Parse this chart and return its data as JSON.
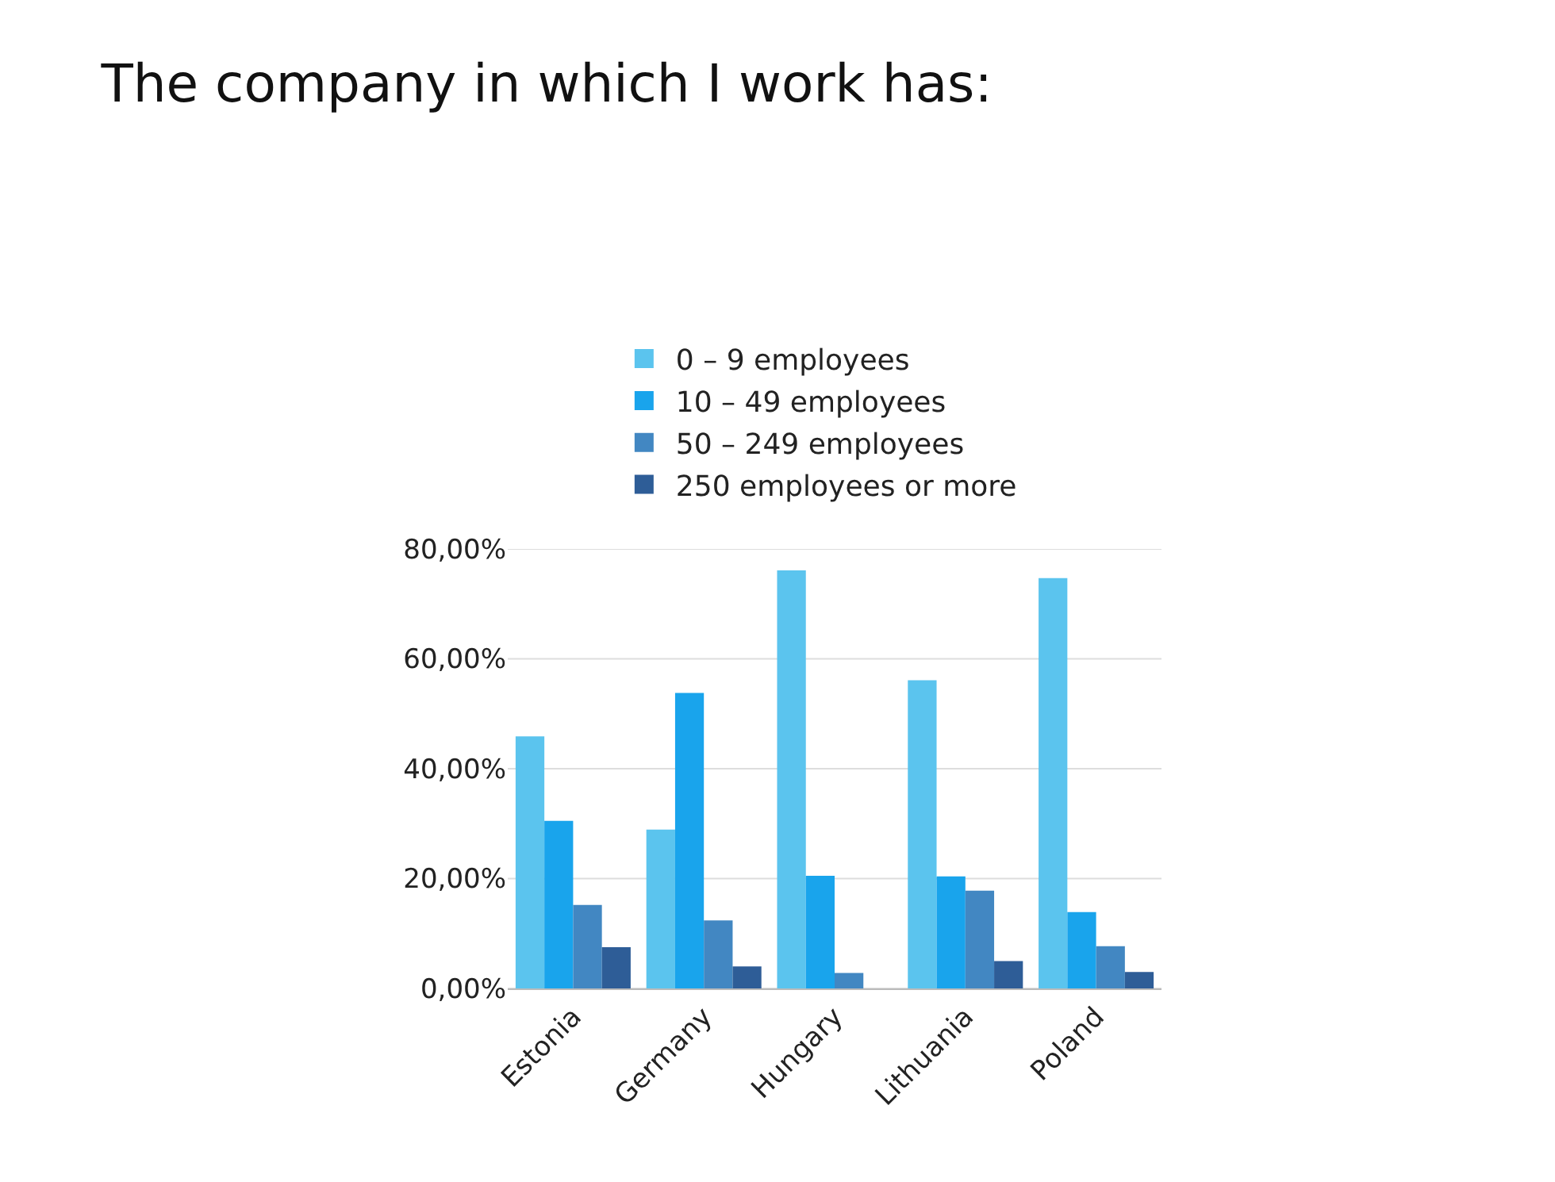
{
  "chart_data": {
    "type": "bar",
    "title": "The company in which I work has:",
    "categories": [
      "Estonia",
      "Germany",
      "Hungary",
      "Lithuania",
      "Poland"
    ],
    "series": [
      {
        "name": "0 – 9 employees",
        "color": "#5bc4ee",
        "values": [
          45.9,
          28.9,
          76.1,
          56.1,
          74.7
        ]
      },
      {
        "name": "10 – 49 employees",
        "color": "#19a4ec",
        "values": [
          30.5,
          53.8,
          20.5,
          20.4,
          13.9
        ]
      },
      {
        "name": "50 – 249 employees",
        "color": "#4287c2",
        "values": [
          15.2,
          12.4,
          2.8,
          17.8,
          7.7
        ]
      },
      {
        "name": "250 employees or more",
        "color": "#2e5d97",
        "values": [
          7.5,
          4.0,
          null,
          5.0,
          3.0
        ]
      }
    ],
    "ylim": [
      0,
      80
    ],
    "yticks": [
      {
        "value": 0,
        "label": "0,00%"
      },
      {
        "value": 20,
        "label": "20,00%"
      },
      {
        "value": 40,
        "label": "40,00%"
      },
      {
        "value": 60,
        "label": "60,00%"
      },
      {
        "value": 80,
        "label": "80,00%"
      }
    ],
    "grid": "y",
    "legend": "top"
  }
}
